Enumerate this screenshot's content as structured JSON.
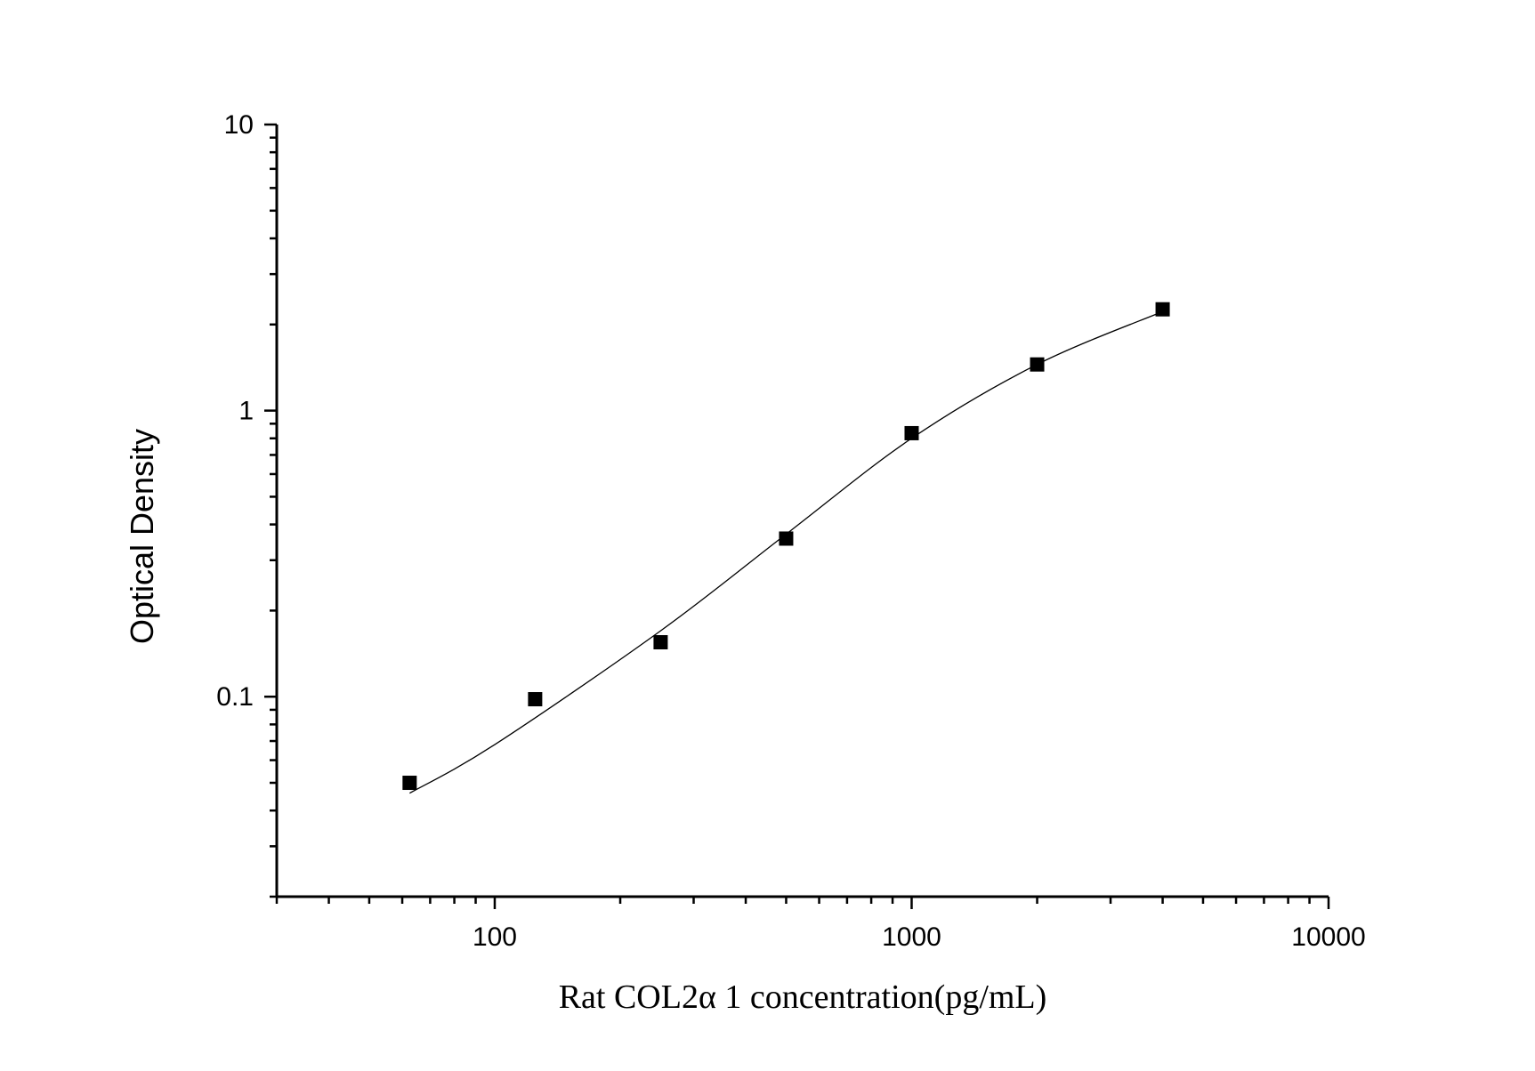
{
  "chart_data": {
    "type": "scatter",
    "title": "",
    "xlabel": "Rat COL2α 1 concentration(pg/mL)",
    "ylabel": "Optical Density",
    "xscale": "log",
    "yscale": "log",
    "xlim": [
      30,
      10000
    ],
    "ylim": [
      0.02,
      10
    ],
    "xticks": [
      {
        "value": 100,
        "label": "100"
      },
      {
        "value": 1000,
        "label": "1000"
      },
      {
        "value": 10000,
        "label": "10000"
      }
    ],
    "yticks": [
      {
        "value": 0.1,
        "label": "0.1"
      },
      {
        "value": 1,
        "label": "1"
      },
      {
        "value": 10,
        "label": "10"
      }
    ],
    "grid": false,
    "legend": "none",
    "marker": "square",
    "colors": {
      "points": "#000000",
      "curve": "#000000",
      "axes": "#000000"
    },
    "series": [
      {
        "x": [
          62.5,
          125,
          250,
          500,
          1000,
          2000,
          4000
        ],
        "y": [
          0.05,
          0.098,
          0.155,
          0.357,
          0.834,
          1.45,
          2.26
        ]
      }
    ],
    "fit_curve": {
      "x": [
        62.5,
        100,
        250,
        500,
        1000,
        2000,
        4000
      ],
      "y": [
        0.046,
        0.068,
        0.17,
        0.37,
        0.8,
        1.45,
        2.22
      ]
    }
  }
}
